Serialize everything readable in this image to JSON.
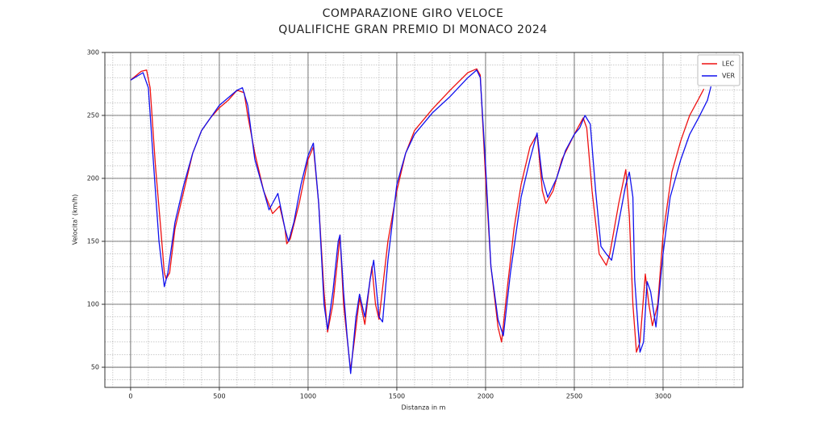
{
  "chart_data": {
    "type": "line",
    "title": [
      "COMPARAZIONE GIRO VELOCE",
      "QUALIFICHE GRAN PREMIO DI MONACO 2024"
    ],
    "x_label": "Distanza in m",
    "y_label": "Velocita' (km/h)",
    "xlim": [
      -145,
      3450
    ],
    "ylim": [
      34,
      300
    ],
    "xticks": [
      0,
      500,
      1000,
      1500,
      2000,
      2500,
      3000
    ],
    "yticks": [
      50,
      100,
      150,
      200,
      250,
      300
    ],
    "grid": true,
    "minor_grid": true,
    "legend": "upper right",
    "series": [
      {
        "name": "LEC",
        "color": "#ee1111",
        "x": [
          0,
          60,
          90,
          110,
          140,
          170,
          190,
          200,
          220,
          250,
          300,
          350,
          400,
          450,
          500,
          550,
          600,
          640,
          660,
          700,
          750,
          800,
          840,
          870,
          880,
          900,
          950,
          1000,
          1030,
          1060,
          1090,
          1110,
          1140,
          1170,
          1180,
          1200,
          1230,
          1240,
          1260,
          1290,
          1320,
          1350,
          1360,
          1380,
          1400,
          1450,
          1500,
          1550,
          1600,
          1700,
          1800,
          1900,
          1950,
          1970,
          2000,
          2030,
          2070,
          2090,
          2120,
          2160,
          2200,
          2250,
          2290,
          2320,
          2340,
          2380,
          2430,
          2500,
          2550,
          2570,
          2600,
          2640,
          2680,
          2700,
          2750,
          2790,
          2810,
          2830,
          2850,
          2870,
          2900,
          2920,
          2940,
          2970,
          3000,
          3050,
          3100,
          3150,
          3200,
          3230
        ],
        "values": [
          278,
          285,
          286,
          272,
          210,
          160,
          125,
          120,
          125,
          160,
          190,
          220,
          238,
          248,
          256,
          262,
          270,
          268,
          250,
          220,
          190,
          172,
          178,
          160,
          148,
          152,
          180,
          215,
          225,
          180,
          110,
          78,
          100,
          140,
          155,
          100,
          60,
          48,
          70,
          105,
          84,
          120,
          130,
          100,
          88,
          150,
          190,
          220,
          238,
          255,
          270,
          284,
          287,
          282,
          200,
          130,
          82,
          70,
          110,
          160,
          195,
          225,
          235,
          190,
          180,
          190,
          215,
          235,
          248,
          240,
          190,
          140,
          131,
          140,
          180,
          207,
          170,
          100,
          62,
          70,
          124,
          100,
          83,
          100,
          155,
          205,
          230,
          250,
          263,
          271
        ]
      },
      {
        "name": "VER",
        "color": "#1111ee",
        "x": [
          0,
          70,
          100,
          130,
          160,
          190,
          210,
          250,
          300,
          350,
          400,
          500,
          600,
          630,
          660,
          700,
          750,
          780,
          830,
          870,
          890,
          920,
          960,
          1000,
          1030,
          1060,
          1090,
          1110,
          1140,
          1170,
          1180,
          1200,
          1220,
          1240,
          1270,
          1290,
          1320,
          1350,
          1370,
          1400,
          1420,
          1450,
          1500,
          1550,
          1600,
          1700,
          1800,
          1900,
          1950,
          1970,
          2000,
          2030,
          2070,
          2100,
          2140,
          2200,
          2250,
          2290,
          2320,
          2350,
          2400,
          2450,
          2500,
          2530,
          2560,
          2590,
          2620,
          2650,
          2680,
          2710,
          2750,
          2790,
          2810,
          2830,
          2840,
          2860,
          2870,
          2890,
          2910,
          2930,
          2960,
          3000,
          3040,
          3070,
          3100,
          3150,
          3200,
          3250,
          3270
        ],
        "values": [
          278,
          284,
          272,
          210,
          150,
          114,
          125,
          165,
          195,
          220,
          238,
          258,
          270,
          272,
          258,
          215,
          190,
          175,
          188,
          160,
          150,
          165,
          195,
          218,
          228,
          180,
          100,
          80,
          110,
          150,
          155,
          110,
          75,
          45,
          90,
          108,
          90,
          120,
          135,
          90,
          86,
          135,
          195,
          220,
          235,
          252,
          265,
          280,
          286,
          280,
          210,
          130,
          88,
          75,
          125,
          185,
          215,
          236,
          200,
          185,
          200,
          222,
          235,
          240,
          250,
          243,
          190,
          146,
          140,
          135,
          165,
          195,
          205,
          185,
          120,
          80,
          62,
          70,
          118,
          110,
          82,
          140,
          185,
          200,
          215,
          235,
          248,
          262,
          273
        ]
      }
    ]
  }
}
